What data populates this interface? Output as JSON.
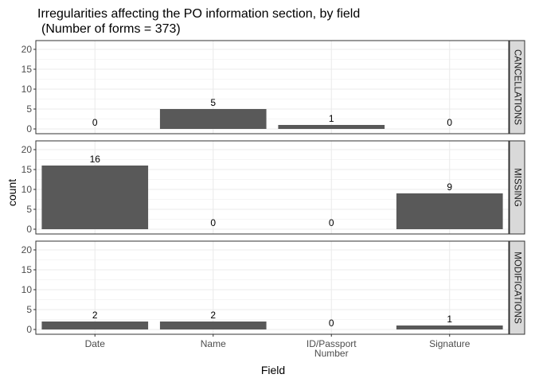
{
  "chart_data": {
    "type": "bar",
    "title": "Irregularities affecting the PO information section, by field",
    "subtitle": "(Number of forms = 373)",
    "xlabel": "Field",
    "ylabel": "count",
    "categories": [
      "Date",
      "Name",
      "ID/Passport\nNumber",
      "Signature"
    ],
    "ylim": [
      0,
      21
    ],
    "yticks": [
      0,
      5,
      10,
      15,
      20
    ],
    "grid": true,
    "facet": "rows",
    "panels": [
      {
        "name": "CANCELLATIONS",
        "values": [
          0,
          5,
          1,
          0
        ]
      },
      {
        "name": "MISSING",
        "values": [
          16,
          0,
          0,
          9
        ]
      },
      {
        "name": "MODIFICATIONS",
        "values": [
          2,
          2,
          0,
          1
        ]
      }
    ],
    "colors": {
      "bar": "#595959",
      "strip": "#d9d9d9",
      "grid": "#ebebeb",
      "panel_border": "#333333"
    }
  }
}
